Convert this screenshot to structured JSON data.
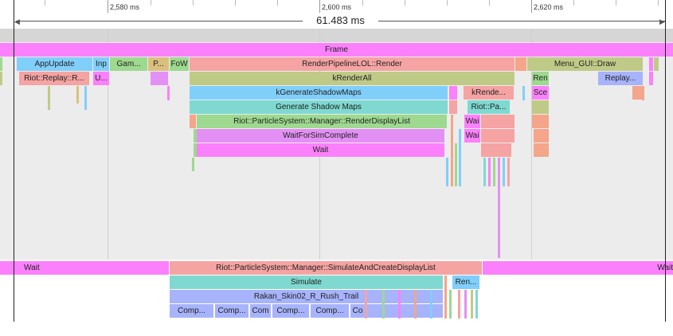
{
  "ruler": {
    "ticks": [
      "2,580 ms",
      "2,600 ms",
      "2,620 ms"
    ],
    "range_label": "61.483 ms"
  },
  "tracks": {
    "main": {
      "frame": "Frame",
      "row1": [
        "AppUpdate",
        "Inp",
        "Gam...",
        "P...",
        "FoW",
        "RenderPipelineLOL::Render",
        "Menu_GUI::Draw"
      ],
      "row2": [
        "Riot::Replay::R...",
        "U...",
        "kRenderAll",
        "Ren",
        "Replay..."
      ],
      "row3": [
        "kGenerateShadowMaps",
        "kRende...",
        "Sce"
      ],
      "row4": [
        "Generate Shadow Maps",
        "Riot::Pa..."
      ],
      "row5": [
        "Riot::ParticleSystem::Manager::RenderDisplayList",
        "Wai"
      ],
      "row6": [
        "WaitForSimComplete",
        "Wai"
      ],
      "row7": [
        "Wait"
      ]
    },
    "worker": {
      "row1": [
        "Wait",
        "Riot::ParticleSystem::Manager::SimulateAndCreateDisplayList",
        "Wait"
      ],
      "row2": [
        "Simulate",
        "Ren..."
      ],
      "row3": [
        "Rakan_Skin02_R_Rush_Trail"
      ],
      "row4": [
        "Comp...",
        "Comp...",
        "Com",
        "Comp...",
        "Comp...",
        "Co"
      ]
    }
  },
  "colors": {
    "pink": "#fb80fb",
    "salmon": "#f5a3a3",
    "blue": "#80cffb",
    "green": "#9dd98f",
    "olive": "#c0ca87",
    "teal": "#7fd9d1",
    "violet": "#e390f5",
    "periwinkle": "#a7b3fb",
    "tan": "#dbc07d",
    "orange": "#f4a58a"
  }
}
